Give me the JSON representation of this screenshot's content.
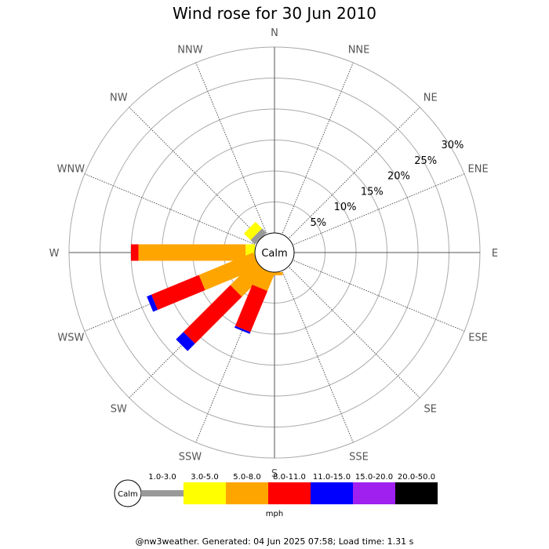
{
  "chart_data": {
    "type": "wind-rose",
    "title": "Wind rose for 30 Jun 2010",
    "directions": [
      "N",
      "NNE",
      "NE",
      "ENE",
      "E",
      "ESE",
      "SE",
      "SSE",
      "S",
      "SSW",
      "SW",
      "WSW",
      "W",
      "WNW",
      "NW",
      "NNW"
    ],
    "ring_labels": [
      "5%",
      "10%",
      "15%",
      "20%",
      "25%",
      "30%"
    ],
    "ring_values": [
      5,
      10,
      15,
      20,
      25,
      30
    ],
    "rmax": 30,
    "calm_label": "Calm",
    "speed_bins": [
      {
        "range": "1.0-3.0",
        "color": "#999999"
      },
      {
        "range": "3.0-5.0",
        "color": "#ffff00"
      },
      {
        "range": "5.0-8.0",
        "color": "#ffa500"
      },
      {
        "range": "8.0-11.0",
        "color": "#ff0000"
      },
      {
        "range": "11.0-15.0",
        "color": "#0000ff"
      },
      {
        "range": "15.0-20.0",
        "color": "#a020f0"
      },
      {
        "range": "20.0-50.0",
        "color": "#000000"
      }
    ],
    "unit": "mph",
    "series": [
      {
        "direction": "NW",
        "values": [
          1.0,
          1.5,
          0,
          0,
          0,
          0,
          0
        ]
      },
      {
        "direction": "NNW",
        "values": [
          0,
          0,
          0,
          0,
          0,
          0,
          0
        ]
      },
      {
        "direction": "W",
        "values": [
          0,
          1.5,
          17.3,
          1.2,
          0,
          0,
          0
        ]
      },
      {
        "direction": "WSW",
        "values": [
          0,
          0,
          9.5,
          8.3,
          0.8,
          0,
          0
        ]
      },
      {
        "direction": "SW",
        "values": [
          0,
          0,
          5.6,
          10.7,
          1.7,
          0,
          0
        ]
      },
      {
        "direction": "SSW",
        "values": [
          0,
          0,
          3.0,
          7.2,
          0.3,
          0,
          0
        ]
      },
      {
        "direction": "S",
        "values": [
          0,
          0,
          0.5,
          0,
          0,
          0,
          0
        ]
      }
    ]
  },
  "footer": "@nw3weather. Generated: 04 Jun 2025 07:58; Load time: 1.31 s"
}
